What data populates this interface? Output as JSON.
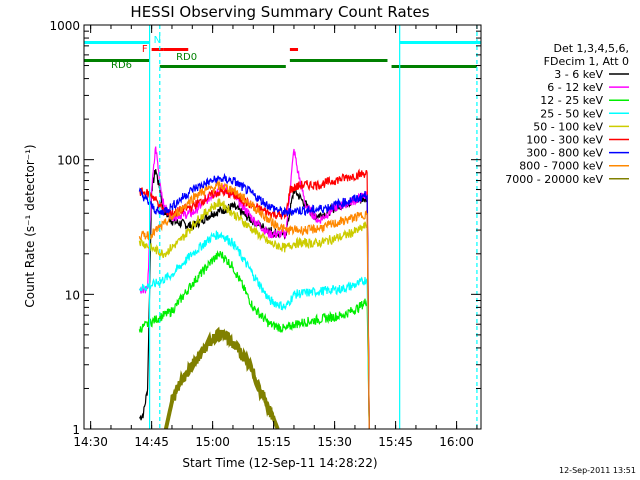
{
  "chart_data": {
    "type": "line",
    "title": "HESSI Observing Summary Count Rates",
    "xlabel": "Start Time (12-Sep-11 14:28:22)",
    "ylabel": "Count Rate (s⁻¹ detector⁻¹)",
    "y_scale": "log",
    "ylim": [
      1,
      1000
    ],
    "xlim": [
      "14:28:22",
      "16:06:00"
    ],
    "x_ticks": [
      "14:30",
      "14:45",
      "15:00",
      "15:15",
      "15:30",
      "15:45",
      "16:00"
    ],
    "y_ticks": [
      "1",
      "10",
      "100",
      "1000"
    ],
    "grid": false,
    "legend_position": "right",
    "legend_header": [
      "Det 1,3,4,5,6,",
      "FDecim 1, Att 0"
    ],
    "timestamp": "12-Sep-2011 13:51",
    "series": [
      {
        "name": "3 - 6 keV",
        "color": "#000000",
        "points": [
          [
            "14:42:00",
            1.2
          ],
          [
            "14:43:00",
            1.3
          ],
          [
            "14:44:00",
            2.0
          ],
          [
            "14:45:00",
            60
          ],
          [
            "14:46:00",
            85
          ],
          [
            "14:47:00",
            60
          ],
          [
            "14:48:00",
            42
          ],
          [
            "14:50:00",
            35
          ],
          [
            "14:55:00",
            32
          ],
          [
            "15:00:00",
            40
          ],
          [
            "15:05:00",
            45
          ],
          [
            "15:10:00",
            35
          ],
          [
            "15:12:00",
            32
          ],
          [
            "15:14:00",
            30
          ],
          [
            "15:16:00",
            28
          ],
          [
            "15:18:00",
            28
          ],
          [
            "15:20:00",
            60
          ],
          [
            "15:22:00",
            50
          ],
          [
            "15:25:00",
            38
          ],
          [
            "15:28:00",
            40
          ],
          [
            "15:30:00",
            44
          ],
          [
            "15:33:00",
            48
          ],
          [
            "15:36:00",
            50
          ],
          [
            "15:38:00",
            52
          ],
          [
            "15:38:30",
            1
          ]
        ]
      },
      {
        "name": "6 - 12 keV",
        "color": "#ff00ff",
        "points": [
          [
            "14:42:00",
            11
          ],
          [
            "14:44:00",
            11
          ],
          [
            "14:45:00",
            60
          ],
          [
            "14:46:00",
            125
          ],
          [
            "14:47:00",
            70
          ],
          [
            "14:48:00",
            45
          ],
          [
            "14:50:00",
            38
          ],
          [
            "14:55:00",
            40
          ],
          [
            "15:00:00",
            55
          ],
          [
            "15:02:00",
            62
          ],
          [
            "15:05:00",
            55
          ],
          [
            "15:10:00",
            36
          ],
          [
            "15:14:00",
            28
          ],
          [
            "15:18:00",
            28
          ],
          [
            "15:20:00",
            120
          ],
          [
            "15:21:00",
            80
          ],
          [
            "15:23:00",
            45
          ],
          [
            "15:26:00",
            35
          ],
          [
            "15:30:00",
            44
          ],
          [
            "15:35:00",
            50
          ],
          [
            "15:38:00",
            55
          ],
          [
            "15:38:30",
            1
          ]
        ]
      },
      {
        "name": "12 - 25 keV",
        "color": "#00ee00",
        "points": [
          [
            "14:42:00",
            5.5
          ],
          [
            "14:46:00",
            6.5
          ],
          [
            "14:50:00",
            7.5
          ],
          [
            "14:55:00",
            12
          ],
          [
            "15:00:00",
            18
          ],
          [
            "15:02:00",
            20
          ],
          [
            "15:05:00",
            16
          ],
          [
            "15:10:00",
            8
          ],
          [
            "15:14:00",
            6
          ],
          [
            "15:18:00",
            5.5
          ],
          [
            "15:20:00",
            6
          ],
          [
            "15:26:00",
            6.5
          ],
          [
            "15:32:00",
            7
          ],
          [
            "15:36:00",
            8
          ],
          [
            "15:38:00",
            9
          ],
          [
            "15:38:30",
            1
          ]
        ]
      },
      {
        "name": "25 - 50 keV",
        "color": "#00ffff",
        "points": [
          [
            "14:42:00",
            11
          ],
          [
            "14:46:00",
            12
          ],
          [
            "14:50:00",
            14
          ],
          [
            "14:55:00",
            20
          ],
          [
            "15:00:00",
            27
          ],
          [
            "15:02:00",
            28
          ],
          [
            "15:05:00",
            24
          ],
          [
            "15:10:00",
            14
          ],
          [
            "15:14:00",
            9
          ],
          [
            "15:18:00",
            8
          ],
          [
            "15:20:00",
            10
          ],
          [
            "15:26:00",
            10.5
          ],
          [
            "15:32:00",
            11
          ],
          [
            "15:36:00",
            12
          ],
          [
            "15:38:00",
            13
          ],
          [
            "15:38:30",
            1
          ]
        ]
      },
      {
        "name": "50 - 100 keV",
        "color": "#cccc00",
        "points": [
          [
            "14:42:00",
            25
          ],
          [
            "14:45:00",
            22
          ],
          [
            "14:48:00",
            20
          ],
          [
            "14:52:00",
            25
          ],
          [
            "14:56:00",
            35
          ],
          [
            "15:00:00",
            45
          ],
          [
            "15:02:00",
            48
          ],
          [
            "15:05:00",
            40
          ],
          [
            "15:10:00",
            30
          ],
          [
            "15:14:00",
            24
          ],
          [
            "15:18:00",
            22
          ],
          [
            "15:20:00",
            24
          ],
          [
            "15:26:00",
            24
          ],
          [
            "15:32:00",
            27
          ],
          [
            "15:36:00",
            30
          ],
          [
            "15:38:00",
            33
          ],
          [
            "15:38:30",
            1
          ]
        ]
      },
      {
        "name": "100 - 300 keV",
        "color": "#ff0000",
        "points": [
          [
            "14:42:00",
            58
          ],
          [
            "14:45:00",
            55
          ],
          [
            "14:48:00",
            42
          ],
          [
            "14:50:00",
            40
          ],
          [
            "14:55:00",
            45
          ],
          [
            "15:00:00",
            55
          ],
          [
            "15:02:00",
            58
          ],
          [
            "15:05:00",
            55
          ],
          [
            "15:10:00",
            45
          ],
          [
            "15:14:00",
            40
          ],
          [
            "15:18:00",
            38
          ],
          [
            "15:19:00",
            60
          ],
          [
            "15:22:00",
            65
          ],
          [
            "15:26:00",
            65
          ],
          [
            "15:30:00",
            70
          ],
          [
            "15:34:00",
            75
          ],
          [
            "15:38:00",
            80
          ],
          [
            "15:38:30",
            1
          ]
        ]
      },
      {
        "name": "300 - 800 keV",
        "color": "#0000ff",
        "points": [
          [
            "14:42:00",
            58
          ],
          [
            "14:45:00",
            45
          ],
          [
            "14:47:00",
            40
          ],
          [
            "14:50:00",
            45
          ],
          [
            "14:55:00",
            60
          ],
          [
            "15:00:00",
            70
          ],
          [
            "15:02:00",
            72
          ],
          [
            "15:05:00",
            70
          ],
          [
            "15:10:00",
            55
          ],
          [
            "15:14:00",
            45
          ],
          [
            "15:18:00",
            40
          ],
          [
            "15:20:00",
            42
          ],
          [
            "15:24:00",
            42
          ],
          [
            "15:28:00",
            44
          ],
          [
            "15:32:00",
            48
          ],
          [
            "15:36:00",
            52
          ],
          [
            "15:38:00",
            55
          ],
          [
            "15:38:30",
            1
          ]
        ]
      },
      {
        "name": "800 - 7000 keV",
        "color": "#ff8800",
        "points": [
          [
            "14:42:00",
            27
          ],
          [
            "14:45:00",
            28
          ],
          [
            "14:48:00",
            33
          ],
          [
            "14:52:00",
            42
          ],
          [
            "14:56:00",
            55
          ],
          [
            "15:00:00",
            62
          ],
          [
            "15:02:00",
            64
          ],
          [
            "15:05:00",
            60
          ],
          [
            "15:10:00",
            45
          ],
          [
            "15:14:00",
            35
          ],
          [
            "15:18:00",
            30
          ],
          [
            "15:20:00",
            30
          ],
          [
            "15:24:00",
            30
          ],
          [
            "15:28:00",
            32
          ],
          [
            "15:32:00",
            35
          ],
          [
            "15:36:00",
            38
          ],
          [
            "15:38:00",
            40
          ],
          [
            "15:38:30",
            1
          ]
        ]
      },
      {
        "name": "7000 - 20000 keV",
        "color": "#808000",
        "points": [
          [
            "14:48:30",
            1
          ],
          [
            "14:50:00",
            1.6
          ],
          [
            "14:52:00",
            2.2
          ],
          [
            "14:55:00",
            3.0
          ],
          [
            "14:58:00",
            4.0
          ],
          [
            "15:01:00",
            5.0
          ],
          [
            "15:03:00",
            5.0
          ],
          [
            "15:06:00",
            4.0
          ],
          [
            "15:09:00",
            3.0
          ],
          [
            "15:11:00",
            2.2
          ],
          [
            "15:13:00",
            1.6
          ],
          [
            "15:15:00",
            1.2
          ],
          [
            "15:16:00",
            1
          ]
        ]
      }
    ],
    "state_bars": [
      {
        "label": "N",
        "color": "#00ffff",
        "segments": [
          [
            "14:28:22",
            "14:44:30"
          ],
          [
            "15:46:00",
            "16:06:00"
          ]
        ]
      },
      {
        "label": "F",
        "color": "#ff0000",
        "segments": [
          [
            "14:48:00",
            "14:54:00"
          ]
        ]
      },
      {
        "label": "RD0",
        "color": "#ff0000",
        "segments": [
          [
            "14:45:00",
            "14:48:00"
          ],
          [
            "15:19:00",
            "15:21:00"
          ]
        ]
      },
      {
        "label": "RD6",
        "color": "#008000",
        "segments": [
          [
            "14:28:22",
            "14:44:30"
          ],
          [
            "14:47:00",
            "15:18:00"
          ],
          [
            "15:19:00",
            "15:43:00"
          ],
          [
            "15:44:00",
            "16:05:00"
          ]
        ]
      }
    ],
    "vlines_solid": [
      "14:44:30",
      "15:46:00"
    ],
    "vlines_dashed": [
      "14:47:00",
      "16:05:00"
    ]
  }
}
